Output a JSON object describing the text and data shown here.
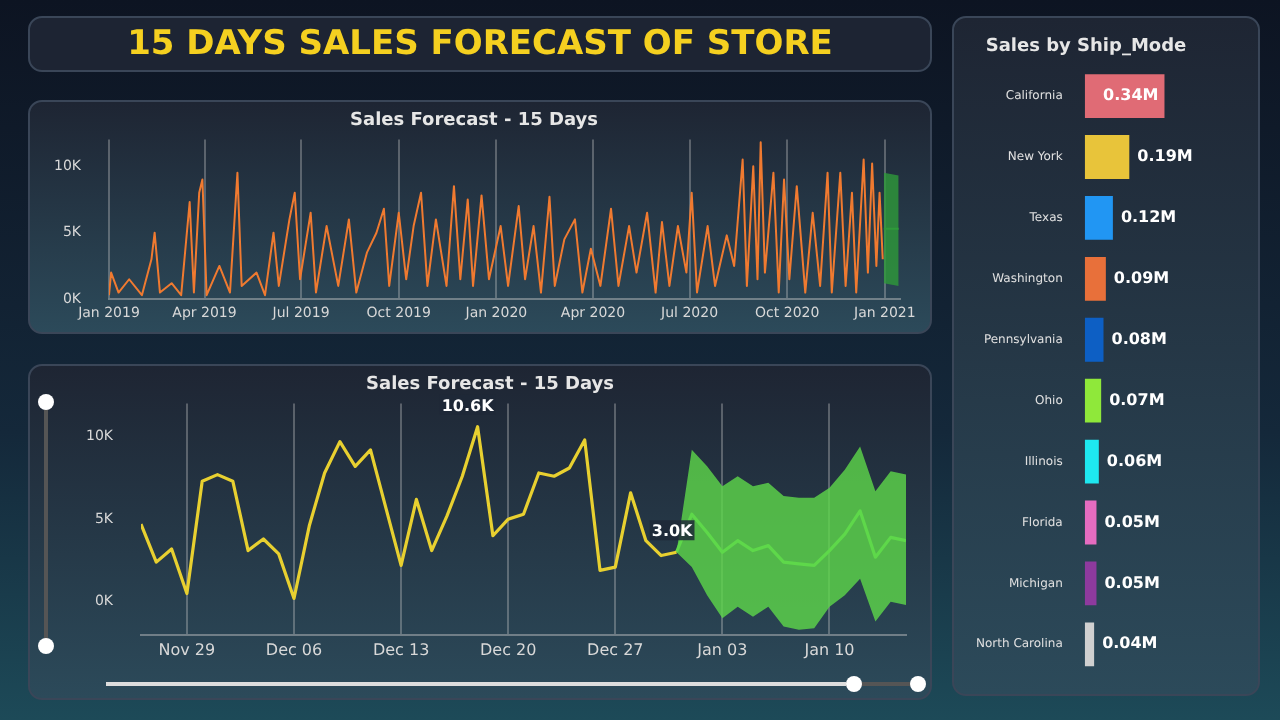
{
  "chart_data": [
    {
      "type": "other",
      "title": "15 DAYS SALES FORECAST OF STORE"
    },
    {
      "type": "line",
      "title": "Sales Forecast - 15 Days",
      "grid": "x",
      "xlim": [
        "2019-01-01",
        "2021-01-15"
      ],
      "ylim": [
        0,
        12000
      ],
      "xticks": [
        {
          "value": "2019-01",
          "label": "Jan 2019"
        },
        {
          "value": "2019-04",
          "label": "Apr 2019"
        },
        {
          "value": "2019-07",
          "label": "Jul 2019"
        },
        {
          "value": "2019-10",
          "label": "Oct 2019"
        },
        {
          "value": "2020-01",
          "label": "Jan 2020"
        },
        {
          "value": "2020-04",
          "label": "Apr 2020"
        },
        {
          "value": "2020-07",
          "label": "Jul 2020"
        },
        {
          "value": "2020-10",
          "label": "Oct 2020"
        },
        {
          "value": "2021-01",
          "label": "Jan 2021"
        }
      ],
      "yticks": [
        {
          "value": 0,
          "label": "0K"
        },
        {
          "value": 5000,
          "label": "5K"
        },
        {
          "value": 10000,
          "label": "10K"
        }
      ],
      "series": [
        {
          "color": "#f07a30",
          "x": [
            "2019-01-01",
            "2019-01-03",
            "2019-01-10",
            "2019-01-20",
            "2019-02-01",
            "2019-02-10",
            "2019-02-13",
            "2019-02-18",
            "2019-03-01",
            "2019-03-10",
            "2019-03-18",
            "2019-03-22",
            "2019-03-27",
            "2019-03-30",
            "2019-04-03",
            "2019-04-15",
            "2019-04-25",
            "2019-05-02",
            "2019-05-06",
            "2019-05-20",
            "2019-05-28",
            "2019-06-05",
            "2019-06-10",
            "2019-06-20",
            "2019-06-25",
            "2019-06-30",
            "2019-07-10",
            "2019-07-15",
            "2019-07-25",
            "2019-08-05",
            "2019-08-15",
            "2019-08-22",
            "2019-09-01",
            "2019-09-10",
            "2019-09-17",
            "2019-09-22",
            "2019-10-01",
            "2019-10-08",
            "2019-10-15",
            "2019-10-22",
            "2019-10-28",
            "2019-11-05",
            "2019-11-15",
            "2019-11-22",
            "2019-11-28",
            "2019-12-05",
            "2019-12-10",
            "2019-12-18",
            "2019-12-25",
            "2020-01-05",
            "2020-01-12",
            "2020-01-22",
            "2020-01-28",
            "2020-02-05",
            "2020-02-12",
            "2020-02-20",
            "2020-02-25",
            "2020-03-05",
            "2020-03-15",
            "2020-03-22",
            "2020-03-30",
            "2020-04-08",
            "2020-04-18",
            "2020-04-25",
            "2020-05-05",
            "2020-05-12",
            "2020-05-22",
            "2020-05-30",
            "2020-06-05",
            "2020-06-12",
            "2020-06-20",
            "2020-06-28",
            "2020-07-03",
            "2020-07-08",
            "2020-07-18",
            "2020-07-25",
            "2020-08-05",
            "2020-08-12",
            "2020-08-20",
            "2020-08-24",
            "2020-08-30",
            "2020-09-03",
            "2020-09-06",
            "2020-09-10",
            "2020-09-18",
            "2020-09-23",
            "2020-09-28",
            "2020-10-03",
            "2020-10-10",
            "2020-10-18",
            "2020-10-25",
            "2020-11-01",
            "2020-11-08",
            "2020-11-12",
            "2020-11-20",
            "2020-11-25",
            "2020-12-01",
            "2020-12-05",
            "2020-12-12",
            "2020-12-16",
            "2020-12-20",
            "2020-12-24",
            "2020-12-27",
            "2020-12-30"
          ],
          "values": [
            300,
            2000,
            500,
            1500,
            300,
            3000,
            5000,
            500,
            1200,
            300,
            7300,
            500,
            8000,
            9000,
            300,
            2500,
            500,
            9500,
            1000,
            2000,
            300,
            5000,
            1000,
            6000,
            8000,
            1500,
            6500,
            500,
            5500,
            1000,
            6000,
            500,
            3500,
            5000,
            6800,
            1000,
            6500,
            1500,
            5500,
            8000,
            1000,
            6000,
            1000,
            8500,
            1500,
            7500,
            1000,
            7800,
            1500,
            5500,
            1000,
            7000,
            1500,
            5500,
            500,
            7700,
            1000,
            4500,
            6000,
            500,
            3800,
            1000,
            6800,
            1000,
            5500,
            2000,
            6500,
            500,
            5800,
            1000,
            5500,
            2000,
            8000,
            500,
            5500,
            1000,
            4800,
            2500,
            10500,
            1000,
            10000,
            1500,
            11800,
            2000,
            9500,
            500,
            9000,
            1500,
            8500,
            500,
            6500,
            1000,
            9500,
            500,
            9500,
            1000,
            8000,
            500,
            10500,
            2000,
            10200,
            2500,
            8000,
            3000
          ]
        },
        {
          "color": "#2e9a3a",
          "x": [
            "2020-12-31",
            "2021-01-14"
          ],
          "values": [
            5300,
            5300
          ],
          "lower": [
            1200,
            1000
          ],
          "upper": [
            9500,
            9300
          ]
        }
      ]
    },
    {
      "type": "line",
      "title": "Sales Forecast - 15 Days",
      "grid": "x",
      "xlim": [
        "2020-11-26",
        "2021-01-15"
      ],
      "ylim": [
        -2000,
        12000
      ],
      "xticks": [
        {
          "value": "2020-11-29",
          "label": "Nov 29"
        },
        {
          "value": "2020-12-06",
          "label": "Dec 06"
        },
        {
          "value": "2020-12-13",
          "label": "Dec 13"
        },
        {
          "value": "2020-12-20",
          "label": "Dec 20"
        },
        {
          "value": "2020-12-27",
          "label": "Dec 27"
        },
        {
          "value": "2021-01-03",
          "label": "Jan 03"
        },
        {
          "value": "2021-01-10",
          "label": "Jan 10"
        }
      ],
      "yticks": [
        {
          "value": 0,
          "label": "0K"
        },
        {
          "value": 5000,
          "label": "5K"
        },
        {
          "value": 10000,
          "label": "10K"
        }
      ],
      "series": [
        {
          "color": "#e8d030",
          "x": [
            "2020-11-26",
            "2020-11-27",
            "2020-11-28",
            "2020-11-29",
            "2020-11-30",
            "2020-12-01",
            "2020-12-02",
            "2020-12-03",
            "2020-12-04",
            "2020-12-05",
            "2020-12-06",
            "2020-12-07",
            "2020-12-08",
            "2020-12-09",
            "2020-12-10",
            "2020-12-11",
            "2020-12-12",
            "2020-12-13",
            "2020-12-14",
            "2020-12-15",
            "2020-12-16",
            "2020-12-17",
            "2020-12-18",
            "2020-12-19",
            "2020-12-20",
            "2020-12-21",
            "2020-12-22",
            "2020-12-23",
            "2020-12-24",
            "2020-12-25",
            "2020-12-26",
            "2020-12-27",
            "2020-12-28",
            "2020-12-29",
            "2020-12-30",
            "2020-12-31"
          ],
          "values": [
            4700,
            2400,
            3200,
            500,
            7300,
            7700,
            7300,
            3100,
            3800,
            2900,
            200,
            4600,
            7800,
            9700,
            8200,
            9200,
            5700,
            2200,
            6200,
            3100,
            5200,
            7600,
            10600,
            4000,
            5000,
            5300,
            7800,
            7600,
            8100,
            9800,
            1900,
            2100,
            6600,
            3700,
            2800,
            3000
          ],
          "value_labels": [
            null,
            null,
            null,
            null,
            null,
            null,
            null,
            null,
            null,
            null,
            null,
            null,
            null,
            null,
            null,
            null,
            null,
            null,
            null,
            null,
            null,
            null,
            "10.6K",
            null,
            null,
            null,
            null,
            null,
            null,
            null,
            null,
            null,
            null,
            null,
            null,
            "3.0K"
          ]
        },
        {
          "color": "#5ed84a",
          "x": [
            "2020-12-31",
            "2021-01-01",
            "2021-01-02",
            "2021-01-03",
            "2021-01-04",
            "2021-01-05",
            "2021-01-06",
            "2021-01-07",
            "2021-01-08",
            "2021-01-09",
            "2021-01-10",
            "2021-01-11",
            "2021-01-12",
            "2021-01-13",
            "2021-01-14",
            "2021-01-15"
          ],
          "values": [
            3000,
            5300,
            4200,
            3000,
            3700,
            3100,
            3400,
            2400,
            2300,
            2200,
            3100,
            4100,
            5500,
            2700,
            3900,
            3700
          ],
          "lower": [
            3000,
            2100,
            400,
            -1000,
            -300,
            -900,
            -300,
            -1500,
            -1700,
            -1600,
            -300,
            400,
            1400,
            -1200,
            0,
            -200
          ],
          "upper": [
            3000,
            9200,
            8200,
            7000,
            7600,
            7000,
            7200,
            6400,
            6300,
            6300,
            6900,
            8000,
            9400,
            6700,
            7900,
            7700
          ]
        }
      ]
    },
    {
      "type": "bar",
      "orientation": "horizontal",
      "title": "Sales by Ship_Mode",
      "tick_labels": "y",
      "categories": [
        "California",
        "New York",
        "Texas",
        "Washington",
        "Pennsylvania",
        "Ohio",
        "Illinois",
        "Florida",
        "Michigan",
        "North Carolina"
      ],
      "values": [
        0.34,
        0.19,
        0.12,
        0.09,
        0.08,
        0.07,
        0.06,
        0.05,
        0.05,
        0.04
      ],
      "value_labels": [
        "0.34M",
        "0.19M",
        "0.12M",
        "0.09M",
        "0.08M",
        "0.07M",
        "0.06M",
        "0.05M",
        "0.05M",
        "0.04M"
      ],
      "colors": [
        "#e06b75",
        "#e8c43a",
        "#2196f3",
        "#e8703a",
        "#0d5fc4",
        "#8fe83a",
        "#1ee8f0",
        "#e56cc0",
        "#8e3a9e",
        "#d0d0d0"
      ]
    }
  ]
}
